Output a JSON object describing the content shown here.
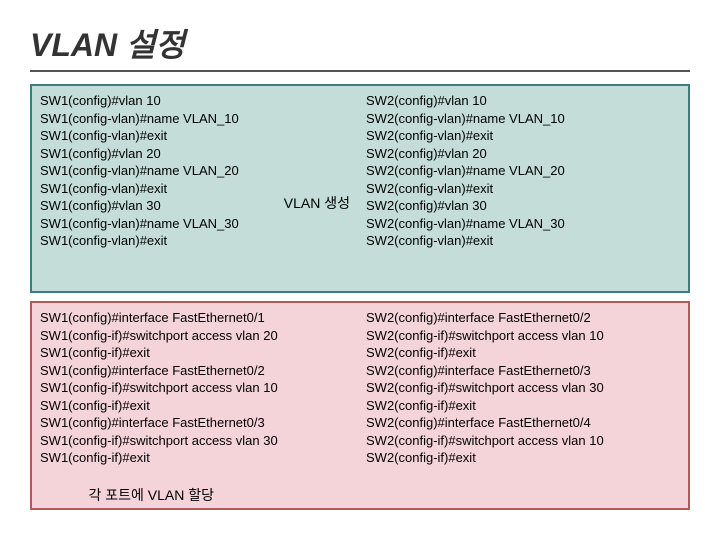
{
  "title": "VLAN 설정",
  "panels": {
    "top": {
      "background_color": "#c4ddd8",
      "border_color": "#3a7d7d",
      "left_lines": [
        "SW1(config)#vlan 10",
        "SW1(config-vlan)#name VLAN_10",
        "SW1(config-vlan)#exit",
        "SW1(config)#vlan 20",
        "SW1(config-vlan)#name VLAN_20",
        "SW1(config-vlan)#exit",
        "SW1(config)#vlan 30",
        "SW1(config-vlan)#name VLAN_30",
        "SW1(config-vlan)#exit"
      ],
      "right_lines": [
        "SW2(config)#vlan 10",
        "SW2(config-vlan)#name VLAN_10",
        "SW2(config-vlan)#exit",
        "SW2(config)#vlan 20",
        "SW2(config-vlan)#name VLAN_20",
        "SW2(config-vlan)#exit",
        "SW2(config)#vlan 30",
        "SW2(config-vlan)#name VLAN_30",
        "SW2(config-vlan)#exit"
      ],
      "annotation": "VLAN 생성"
    },
    "bottom": {
      "background_color": "#f4d4d8",
      "border_color": "#b05a5a",
      "left_lines": [
        "SW1(config)#interface FastEthernet0/1",
        "SW1(config-if)#switchport access vlan 20",
        "SW1(config-if)#exit",
        "SW1(config)#interface FastEthernet0/2",
        "SW1(config-if)#switchport access vlan 10",
        "SW1(config-if)#exit",
        "SW1(config)#interface FastEthernet0/3",
        "SW1(config-if)#switchport access vlan 30",
        "SW1(config-if)#exit"
      ],
      "right_lines": [
        "SW2(config)#interface FastEthernet0/2",
        "SW2(config-if)#switchport access vlan 10",
        "SW2(config-if)#exit",
        "SW2(config)#interface FastEthernet0/3",
        "SW2(config-if)#switchport access vlan 30",
        "SW2(config-if)#exit",
        "SW2(config)#interface FastEthernet0/4",
        "SW2(config-if)#switchport access vlan 10",
        "SW2(config-if)#exit"
      ],
      "annotation": "각 포트에\nVLAN 할당"
    }
  },
  "style": {
    "title_fontsize": 32,
    "body_fontsize": 13,
    "annotation_fontsize": 14,
    "page_background": "#ffffff",
    "text_color": "#000000",
    "title_color": "#333333",
    "hr_color": "#555555"
  }
}
